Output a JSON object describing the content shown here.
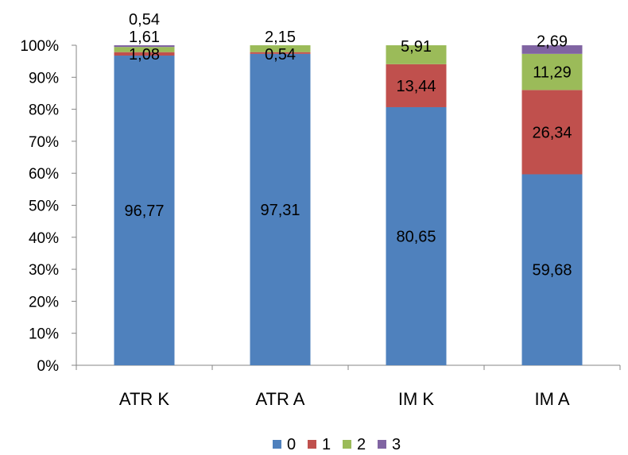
{
  "chart_data": {
    "type": "bar",
    "stacked": true,
    "percent": true,
    "categories": [
      "ATR K",
      "ATR A",
      "IM K",
      "IM A"
    ],
    "series": [
      {
        "name": "0",
        "color": "#4f81bd",
        "values": [
          96.77,
          97.31,
          80.65,
          59.68
        ],
        "labels": [
          "96,77",
          "97,31",
          "80,65",
          "59,68"
        ]
      },
      {
        "name": "1",
        "color": "#c0504d",
        "values": [
          1.08,
          0.54,
          13.44,
          26.34
        ],
        "labels": [
          "1,08",
          "0,54",
          "13,44",
          "26,34"
        ]
      },
      {
        "name": "2",
        "color": "#9bbb59",
        "values": [
          1.61,
          2.15,
          5.91,
          11.29
        ],
        "labels": [
          "1,61",
          "2,15",
          "5,91",
          "11,29"
        ]
      },
      {
        "name": "3",
        "color": "#8064a2",
        "values": [
          0.54,
          0,
          0,
          2.69
        ],
        "labels": [
          "0,54",
          "",
          "",
          "2,69"
        ]
      }
    ],
    "yticks": [
      "0%",
      "10%",
      "20%",
      "30%",
      "40%",
      "50%",
      "60%",
      "70%",
      "80%",
      "90%",
      "100%"
    ],
    "ylim": [
      0,
      100
    ],
    "grid": false,
    "legend_position": "bottom"
  }
}
